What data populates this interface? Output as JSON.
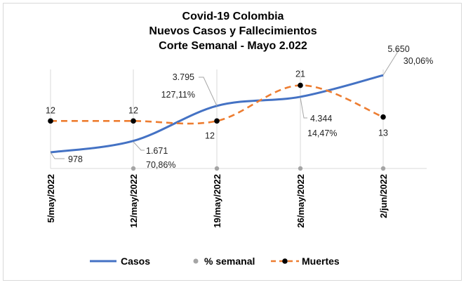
{
  "chart_data": {
    "type": "line",
    "title": [
      "Covid-19 Colombia",
      "Nuevos Casos y Fallecimientos",
      "Corte Semanal - Mayo 2.022"
    ],
    "categories": [
      "5/may/2022",
      "12/may/2022",
      "19/may/2022",
      "26/may/2022",
      "2/jun/2022"
    ],
    "series": [
      {
        "name": "Casos",
        "values": [
          978,
          1671,
          3795,
          4344,
          5650
        ],
        "labels": [
          "978",
          "1.671",
          "3.795",
          "4.344",
          "5.650"
        ],
        "color": "#4472c4",
        "axis": "primary",
        "ylim": [
          0,
          6000
        ]
      },
      {
        "name": "% semanal",
        "values": [
          null,
          70.86,
          127.11,
          14.47,
          30.06
        ],
        "labels": [
          "",
          "70,86%",
          "127,11%",
          "14,47%",
          "30,06%"
        ],
        "color": "#a5a5a5"
      },
      {
        "name": "Muertes",
        "values": [
          12,
          12,
          12,
          21,
          13
        ],
        "labels": [
          "12",
          "12",
          "12",
          "21",
          "13"
        ],
        "color": "#ed7d31",
        "axis": "secondary",
        "ylim": [
          0,
          25
        ]
      }
    ],
    "grid": "vertical",
    "legend": "bottom"
  }
}
